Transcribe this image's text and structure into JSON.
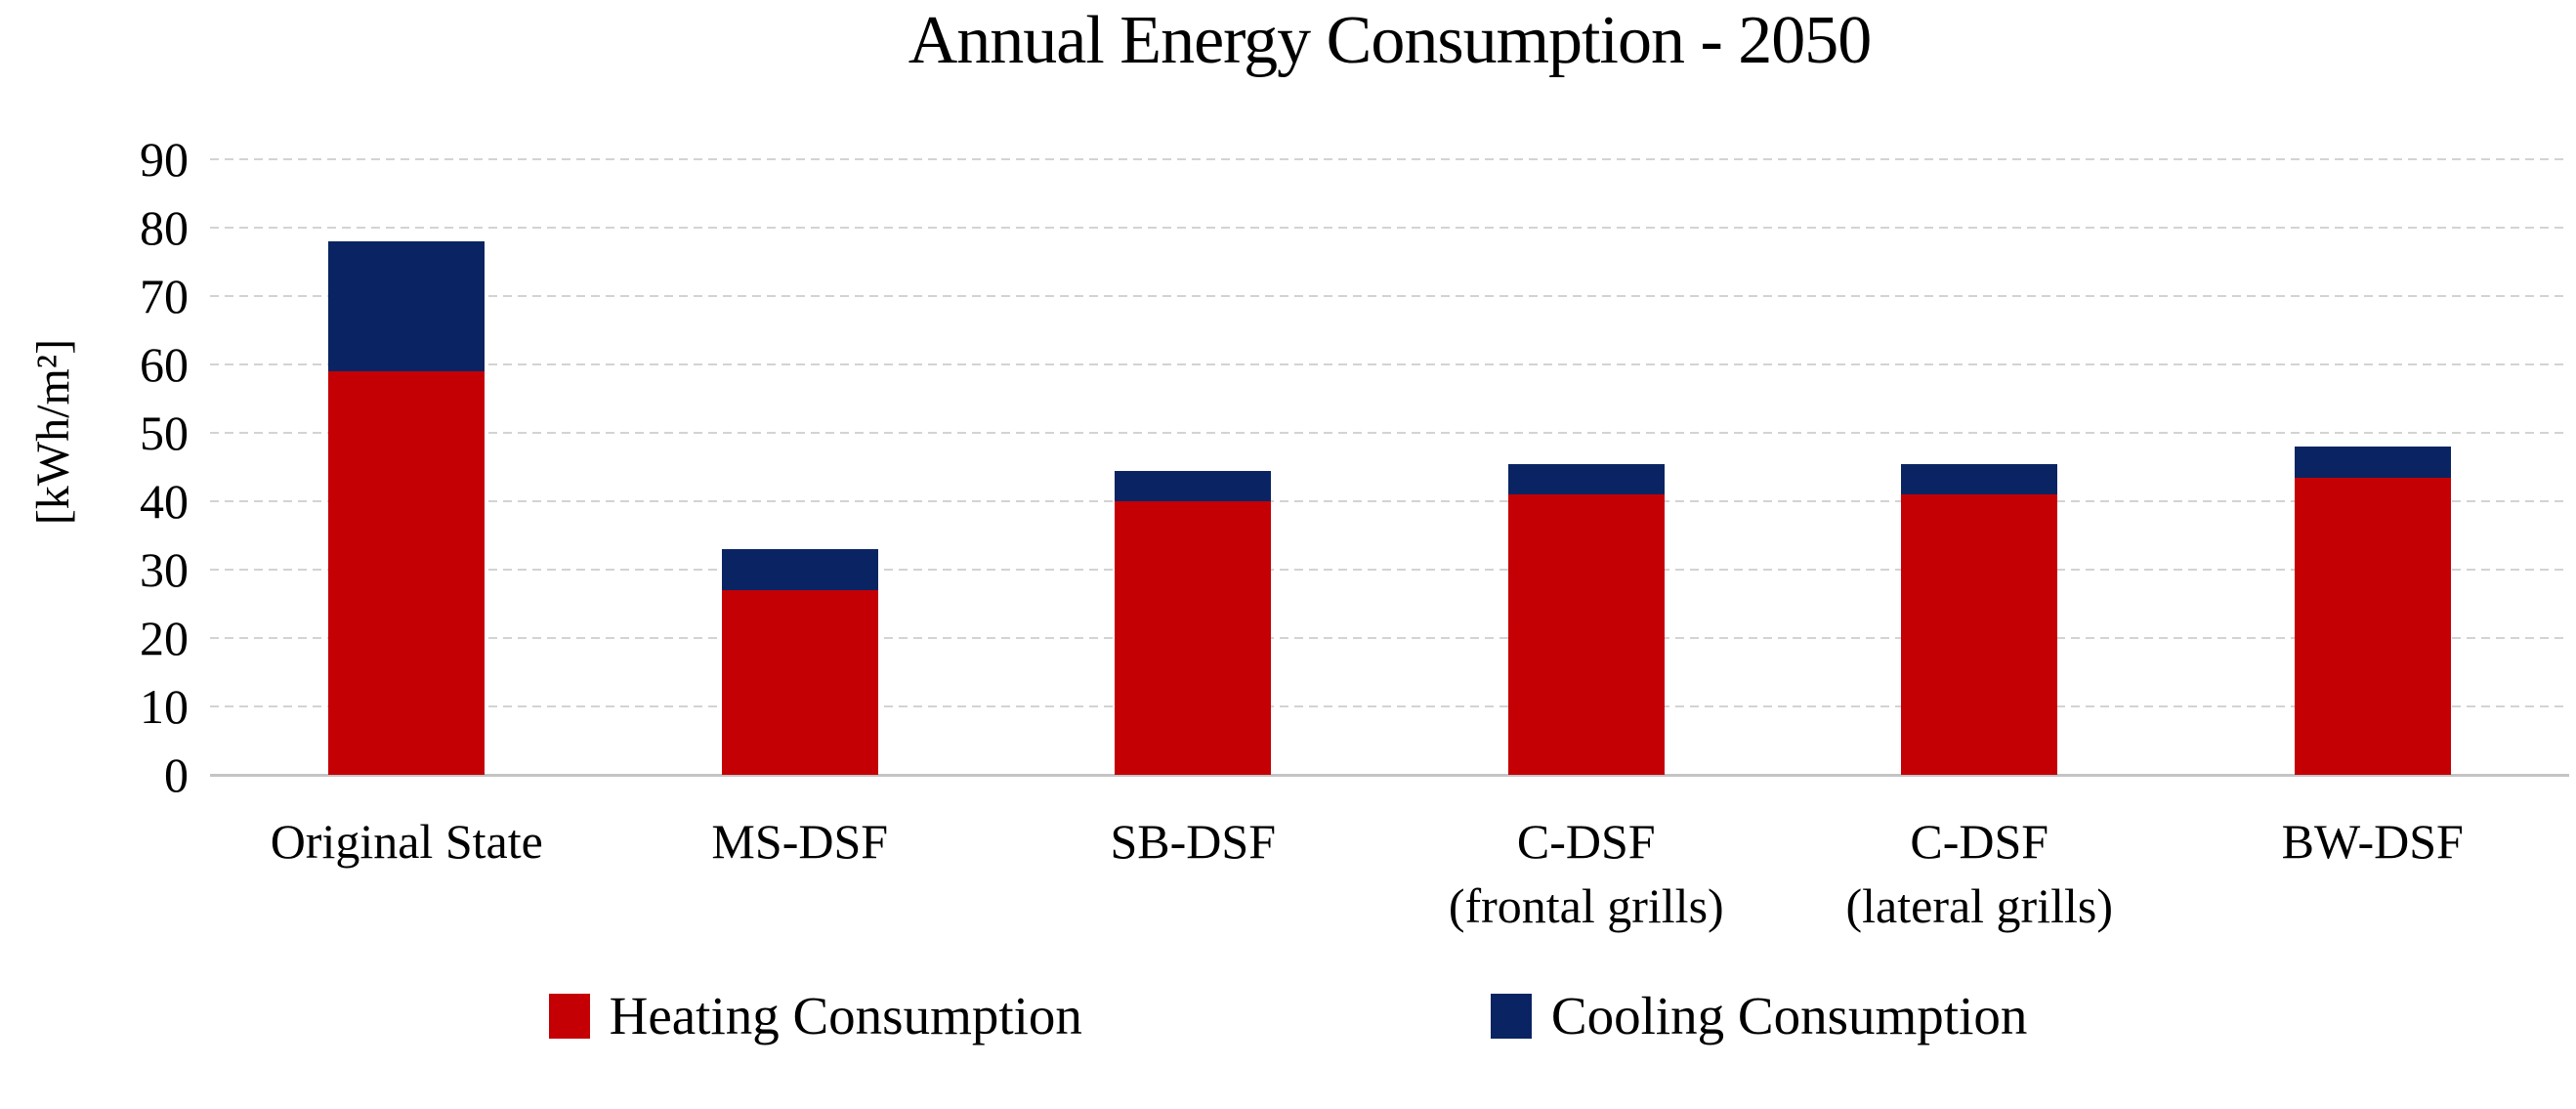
{
  "chart_data": {
    "type": "bar",
    "stacked": true,
    "title": "Annual Energy Consumption - 2050",
    "ylabel": "[kWh/m²]",
    "xlabel": "",
    "ylim": [
      0,
      90
    ],
    "yticks": [
      0,
      10,
      20,
      30,
      40,
      50,
      60,
      70,
      80,
      90
    ],
    "grid": "horizontal-dashed",
    "legend_position": "bottom-center",
    "categories": [
      "Original State",
      "MS-DSF",
      "SB-DSF",
      "C-DSF\n(frontal grills)",
      "C-DSF\n(lateral grills)",
      "BW-DSF"
    ],
    "series": [
      {
        "name": "Heating Consumption",
        "color": "#c40005",
        "values": [
          59,
          27,
          40,
          41,
          41,
          43.5
        ]
      },
      {
        "name": "Cooling Consumption",
        "color": "#0a2463",
        "values": [
          19,
          6,
          4.5,
          4.5,
          4.5,
          4.5
        ]
      }
    ],
    "stack_totals": [
      78,
      33,
      44.5,
      45.5,
      45.5,
      48
    ]
  },
  "colors": {
    "background": "#ffffff",
    "gridline": "#d3d3d3",
    "axis_line": "#c4c4c4",
    "text": "#000000"
  }
}
